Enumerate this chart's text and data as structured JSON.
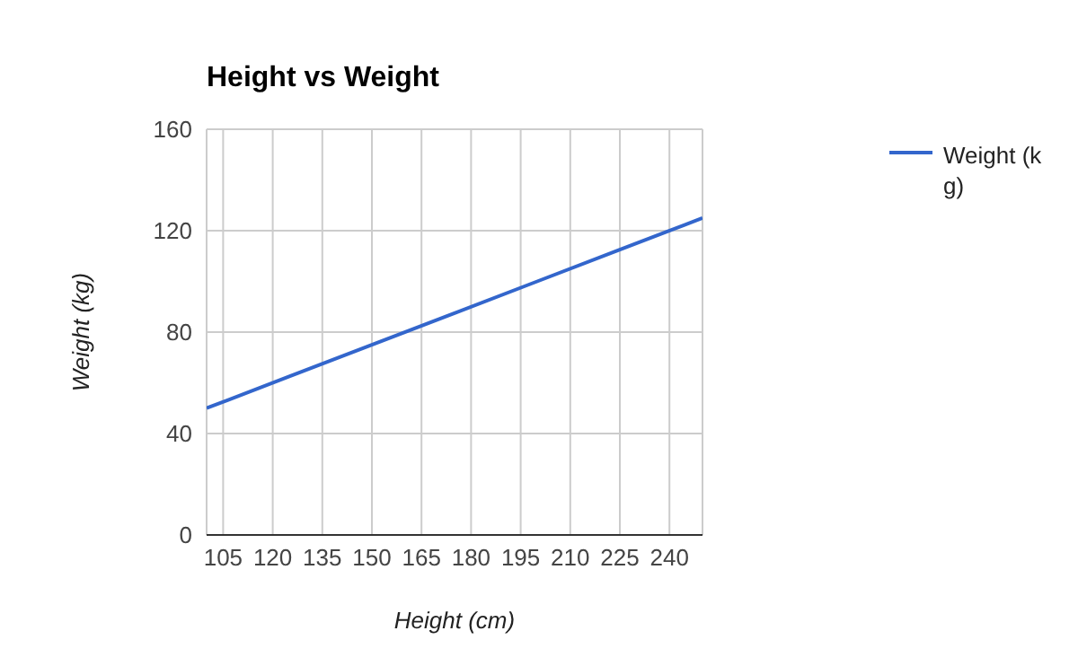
{
  "chart_data": {
    "type": "line",
    "title": "Height vs Weight",
    "xlabel": "Height (cm)",
    "ylabel": "Weight (kg)",
    "x": [
      100,
      125,
      150,
      175,
      200,
      225,
      250
    ],
    "series": [
      {
        "name": "Weight (kg)",
        "color": "#3366cc",
        "values": [
          50,
          62.5,
          75,
          87.5,
          100,
          112.5,
          125
        ]
      }
    ],
    "xlim": [
      100,
      250
    ],
    "xticks": [
      105,
      120,
      135,
      150,
      165,
      180,
      195,
      210,
      225,
      240
    ],
    "ylim": [
      0,
      160
    ],
    "yticks": [
      0,
      40,
      80,
      120,
      160
    ],
    "grid": true,
    "legend": "top right",
    "marker": "none",
    "line_style": "solid"
  }
}
